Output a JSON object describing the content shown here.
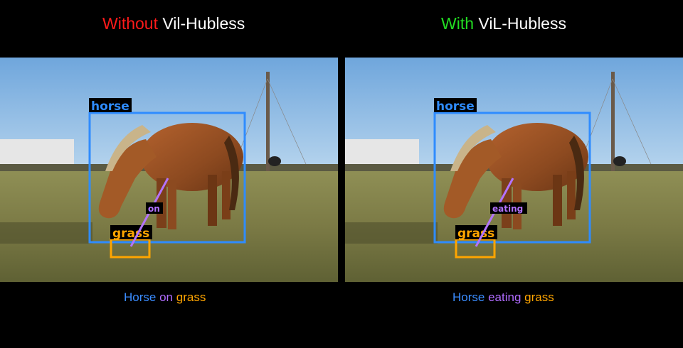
{
  "left": {
    "title_prefix": "Without",
    "title_suffix": "Vil-Hubless",
    "prefix_color": "#ff1a1a",
    "detections": {
      "subject": "horse",
      "relation": "on",
      "object": "grass"
    },
    "caption": {
      "subject": "Horse",
      "relation": "on",
      "object": "grass"
    }
  },
  "right": {
    "title_prefix": "With",
    "title_suffix": "ViL-Hubless",
    "prefix_color": "#22dd22",
    "detections": {
      "subject": "horse",
      "relation": "eating",
      "object": "grass"
    },
    "caption": {
      "subject": "Horse",
      "relation": "eating",
      "object": "grass"
    }
  },
  "colors": {
    "subject_box": "#2f8cff",
    "object_box": "#ffa500",
    "relation_line": "#b373ff",
    "caption_subject": "#3a8cff",
    "caption_relation": "#b06cff",
    "caption_object": "#ffa500"
  }
}
